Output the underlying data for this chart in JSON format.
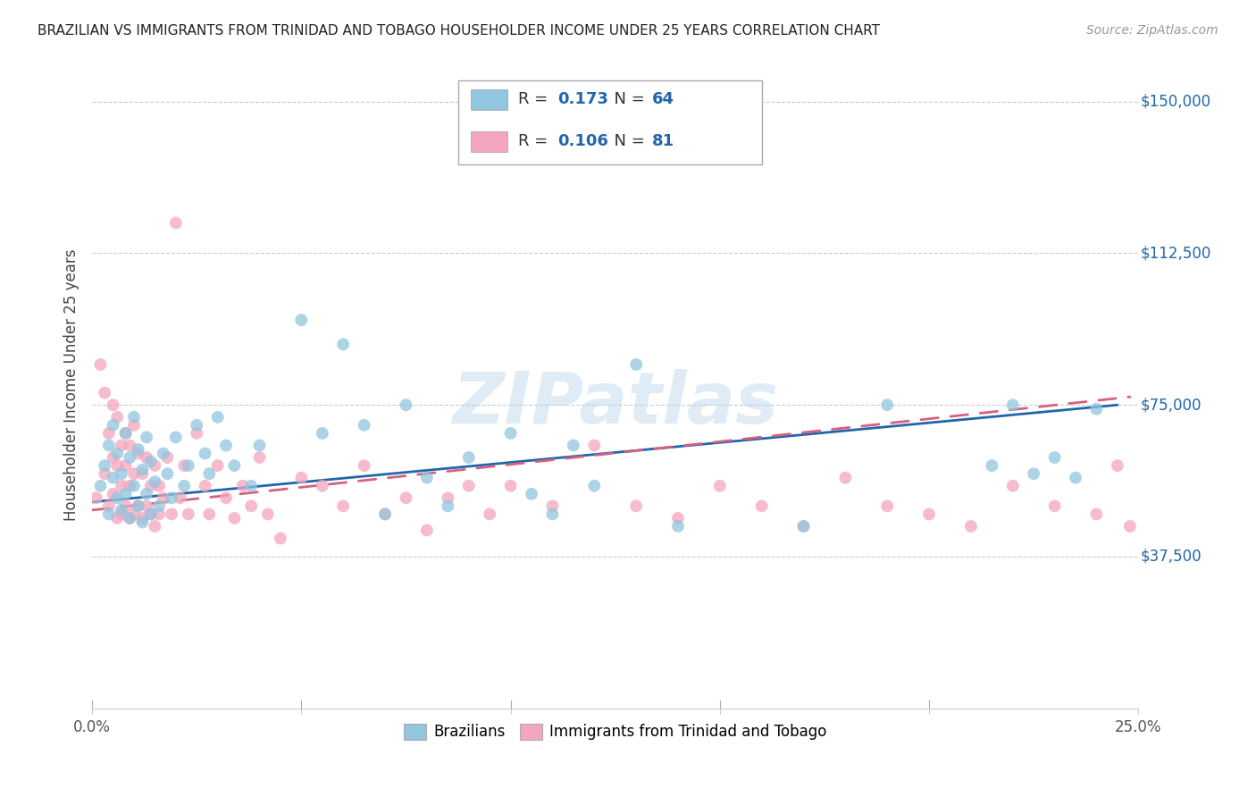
{
  "title": "BRAZILIAN VS IMMIGRANTS FROM TRINIDAD AND TOBAGO HOUSEHOLDER INCOME UNDER 25 YEARS CORRELATION CHART",
  "source": "Source: ZipAtlas.com",
  "ylabel": "Householder Income Under 25 years",
  "xlim": [
    0.0,
    0.25
  ],
  "ylim": [
    0,
    160000
  ],
  "yticks": [
    0,
    37500,
    75000,
    112500,
    150000
  ],
  "ytick_labels": [
    "",
    "$37,500",
    "$75,000",
    "$112,500",
    "$150,000"
  ],
  "xticks": [
    0.0,
    0.05,
    0.1,
    0.15,
    0.2,
    0.25
  ],
  "blue_R": 0.173,
  "blue_N": 64,
  "pink_R": 0.106,
  "pink_N": 81,
  "blue_color": "#92c5de",
  "pink_color": "#f4a6be",
  "trend_blue": "#2166ac",
  "trend_pink": "#d6617f",
  "legend_blue_label": "Brazilians",
  "legend_pink_label": "Immigrants from Trinidad and Tobago",
  "blue_scatter_x": [
    0.002,
    0.003,
    0.004,
    0.004,
    0.005,
    0.005,
    0.006,
    0.006,
    0.007,
    0.007,
    0.008,
    0.008,
    0.009,
    0.009,
    0.01,
    0.01,
    0.011,
    0.011,
    0.012,
    0.012,
    0.013,
    0.013,
    0.014,
    0.014,
    0.015,
    0.016,
    0.017,
    0.018,
    0.019,
    0.02,
    0.022,
    0.023,
    0.025,
    0.027,
    0.028,
    0.03,
    0.032,
    0.034,
    0.038,
    0.04,
    0.05,
    0.055,
    0.06,
    0.065,
    0.07,
    0.075,
    0.08,
    0.085,
    0.09,
    0.1,
    0.105,
    0.11,
    0.115,
    0.12,
    0.13,
    0.14,
    0.17,
    0.19,
    0.215,
    0.22,
    0.225,
    0.23,
    0.235,
    0.24
  ],
  "blue_scatter_y": [
    55000,
    60000,
    48000,
    65000,
    57000,
    70000,
    52000,
    63000,
    49000,
    58000,
    53000,
    68000,
    47000,
    62000,
    55000,
    72000,
    50000,
    64000,
    46000,
    59000,
    53000,
    67000,
    48000,
    61000,
    56000,
    50000,
    63000,
    58000,
    52000,
    67000,
    55000,
    60000,
    70000,
    63000,
    58000,
    72000,
    65000,
    60000,
    55000,
    65000,
    96000,
    68000,
    90000,
    70000,
    48000,
    75000,
    57000,
    50000,
    62000,
    68000,
    53000,
    48000,
    65000,
    55000,
    85000,
    45000,
    45000,
    75000,
    60000,
    75000,
    58000,
    62000,
    57000,
    74000
  ],
  "pink_scatter_x": [
    0.001,
    0.002,
    0.003,
    0.003,
    0.004,
    0.004,
    0.005,
    0.005,
    0.005,
    0.006,
    0.006,
    0.006,
    0.007,
    0.007,
    0.007,
    0.008,
    0.008,
    0.008,
    0.009,
    0.009,
    0.009,
    0.01,
    0.01,
    0.01,
    0.011,
    0.011,
    0.012,
    0.012,
    0.013,
    0.013,
    0.014,
    0.014,
    0.015,
    0.015,
    0.016,
    0.016,
    0.017,
    0.018,
    0.019,
    0.02,
    0.021,
    0.022,
    0.023,
    0.025,
    0.027,
    0.028,
    0.03,
    0.032,
    0.034,
    0.036,
    0.038,
    0.04,
    0.042,
    0.045,
    0.05,
    0.055,
    0.06,
    0.065,
    0.07,
    0.075,
    0.08,
    0.085,
    0.09,
    0.095,
    0.1,
    0.11,
    0.12,
    0.13,
    0.14,
    0.15,
    0.16,
    0.17,
    0.18,
    0.19,
    0.2,
    0.21,
    0.22,
    0.23,
    0.24,
    0.245,
    0.248
  ],
  "pink_scatter_y": [
    52000,
    85000,
    58000,
    78000,
    50000,
    68000,
    53000,
    62000,
    75000,
    47000,
    60000,
    72000,
    48000,
    55000,
    65000,
    50000,
    60000,
    68000,
    47000,
    55000,
    65000,
    48000,
    58000,
    70000,
    50000,
    63000,
    47000,
    58000,
    50000,
    62000,
    48000,
    55000,
    45000,
    60000,
    48000,
    55000,
    52000,
    62000,
    48000,
    120000,
    52000,
    60000,
    48000,
    68000,
    55000,
    48000,
    60000,
    52000,
    47000,
    55000,
    50000,
    62000,
    48000,
    42000,
    57000,
    55000,
    50000,
    60000,
    48000,
    52000,
    44000,
    52000,
    55000,
    48000,
    55000,
    50000,
    65000,
    50000,
    47000,
    55000,
    50000,
    45000,
    57000,
    50000,
    48000,
    45000,
    55000,
    50000,
    48000,
    60000,
    45000
  ]
}
